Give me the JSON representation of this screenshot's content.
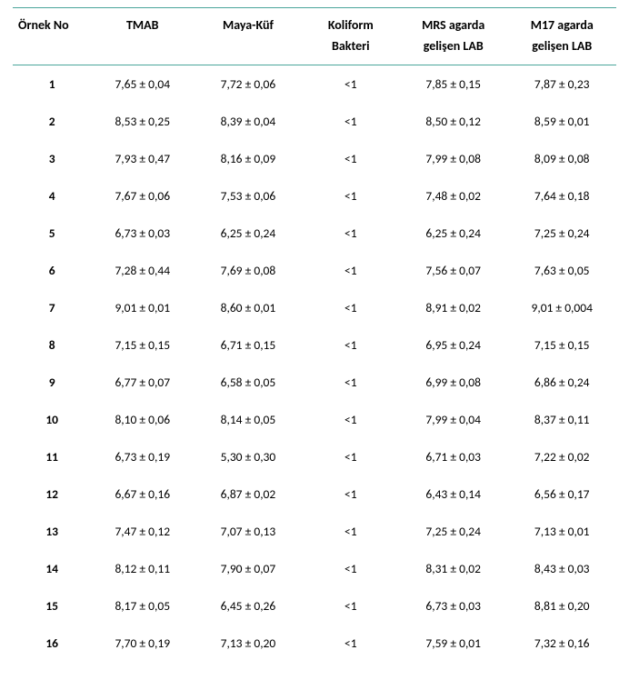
{
  "table": {
    "type": "table",
    "background_color": "#ffffff",
    "border_color": "#4aa59b",
    "text_color": "#000000",
    "header_fontsize": 14,
    "body_fontsize": 13.5,
    "header_fontweight": "700",
    "rownum_fontweight": "700",
    "columns": [
      {
        "key": "no",
        "label": "Örnek No",
        "label2": "",
        "align": "left"
      },
      {
        "key": "tmab",
        "label": "TMAB",
        "label2": "",
        "align": "center"
      },
      {
        "key": "mk",
        "label": "Maya-Küf",
        "label2": "",
        "align": "center"
      },
      {
        "key": "kol",
        "label": "Koliform",
        "label2": "Bakteri",
        "align": "center"
      },
      {
        "key": "mrs",
        "label": "MRS agarda",
        "label2": "gelişen LAB",
        "align": "center"
      },
      {
        "key": "m17",
        "label": "M17 agarda",
        "label2": "gelişen LAB",
        "align": "center"
      }
    ],
    "rows": [
      {
        "no": "1",
        "tmab": "7,65 ± 0,04",
        "mk": "7,72 ± 0,06",
        "kol": "<1",
        "mrs": "7,85 ± 0,15",
        "m17": "7,87 ± 0,23"
      },
      {
        "no": "2",
        "tmab": "8,53 ± 0,25",
        "mk": "8,39 ± 0,04",
        "kol": "<1",
        "mrs": "8,50 ± 0,12",
        "m17": "8,59 ± 0,01"
      },
      {
        "no": "3",
        "tmab": "7,93 ± 0,47",
        "mk": "8,16 ± 0,09",
        "kol": "<1",
        "mrs": "7,99 ± 0,08",
        "m17": "8,09 ± 0,08"
      },
      {
        "no": "4",
        "tmab": "7,67 ± 0,06",
        "mk": "7,53 ± 0,06",
        "kol": "<1",
        "mrs": "7,48 ± 0,02",
        "m17": "7,64 ± 0,18"
      },
      {
        "no": "5",
        "tmab": "6,73 ± 0,03",
        "mk": "6,25 ± 0,24",
        "kol": "<1",
        "mrs": "6,25 ± 0,24",
        "m17": "7,25 ± 0,24"
      },
      {
        "no": "6",
        "tmab": "7,28 ± 0,44",
        "mk": "7,69 ± 0,08",
        "kol": "<1",
        "mrs": "7,56 ± 0,07",
        "m17": "7,63 ± 0,05"
      },
      {
        "no": "7",
        "tmab": "9,01 ± 0,01",
        "mk": "8,60 ± 0,01",
        "kol": "<1",
        "mrs": "8,91 ± 0,02",
        "m17": "9,01 ± 0,004"
      },
      {
        "no": "8",
        "tmab": "7,15 ± 0,15",
        "mk": "6,71 ± 0,15",
        "kol": "<1",
        "mrs": "6,95 ± 0,24",
        "m17": "7,15 ± 0,15"
      },
      {
        "no": "9",
        "tmab": "6,77 ± 0,07",
        "mk": "6,58 ± 0,05",
        "kol": "<1",
        "mrs": "6,99 ± 0,08",
        "m17": "6,86 ± 0,24"
      },
      {
        "no": "10",
        "tmab": "8,10 ± 0,06",
        "mk": "8,14 ± 0,05",
        "kol": "<1",
        "mrs": "7,99 ± 0,04",
        "m17": "8,37 ± 0,11"
      },
      {
        "no": "11",
        "tmab": "6,73 ± 0,19",
        "mk": "5,30 ± 0,30",
        "kol": "<1",
        "mrs": "6,71 ± 0,03",
        "m17": "7,22 ± 0,02"
      },
      {
        "no": "12",
        "tmab": "6,67 ± 0,16",
        "mk": "6,87 ± 0,02",
        "kol": "<1",
        "mrs": "6,43 ± 0,14",
        "m17": "6,56 ± 0,17"
      },
      {
        "no": "13",
        "tmab": "7,47 ± 0,12",
        "mk": "7,07 ± 0,13",
        "kol": "<1",
        "mrs": "7,25 ± 0,24",
        "m17": "7,13 ± 0,01"
      },
      {
        "no": "14",
        "tmab": "8,12 ± 0,11",
        "mk": "7,90 ± 0,07",
        "kol": "<1",
        "mrs": "8,31 ± 0,02",
        "m17": "8,43 ± 0,03"
      },
      {
        "no": "15",
        "tmab": "8,17 ± 0,05",
        "mk": "6,45 ± 0,26",
        "kol": "<1",
        "mrs": "6,73 ± 0,03",
        "m17": "8,81 ± 0,20"
      },
      {
        "no": "16",
        "tmab": "7,70 ± 0,19",
        "mk": "7,13 ± 0,20",
        "kol": "<1",
        "mrs": "7,59 ± 0,01",
        "m17": "7,32 ± 0,16"
      }
    ]
  }
}
